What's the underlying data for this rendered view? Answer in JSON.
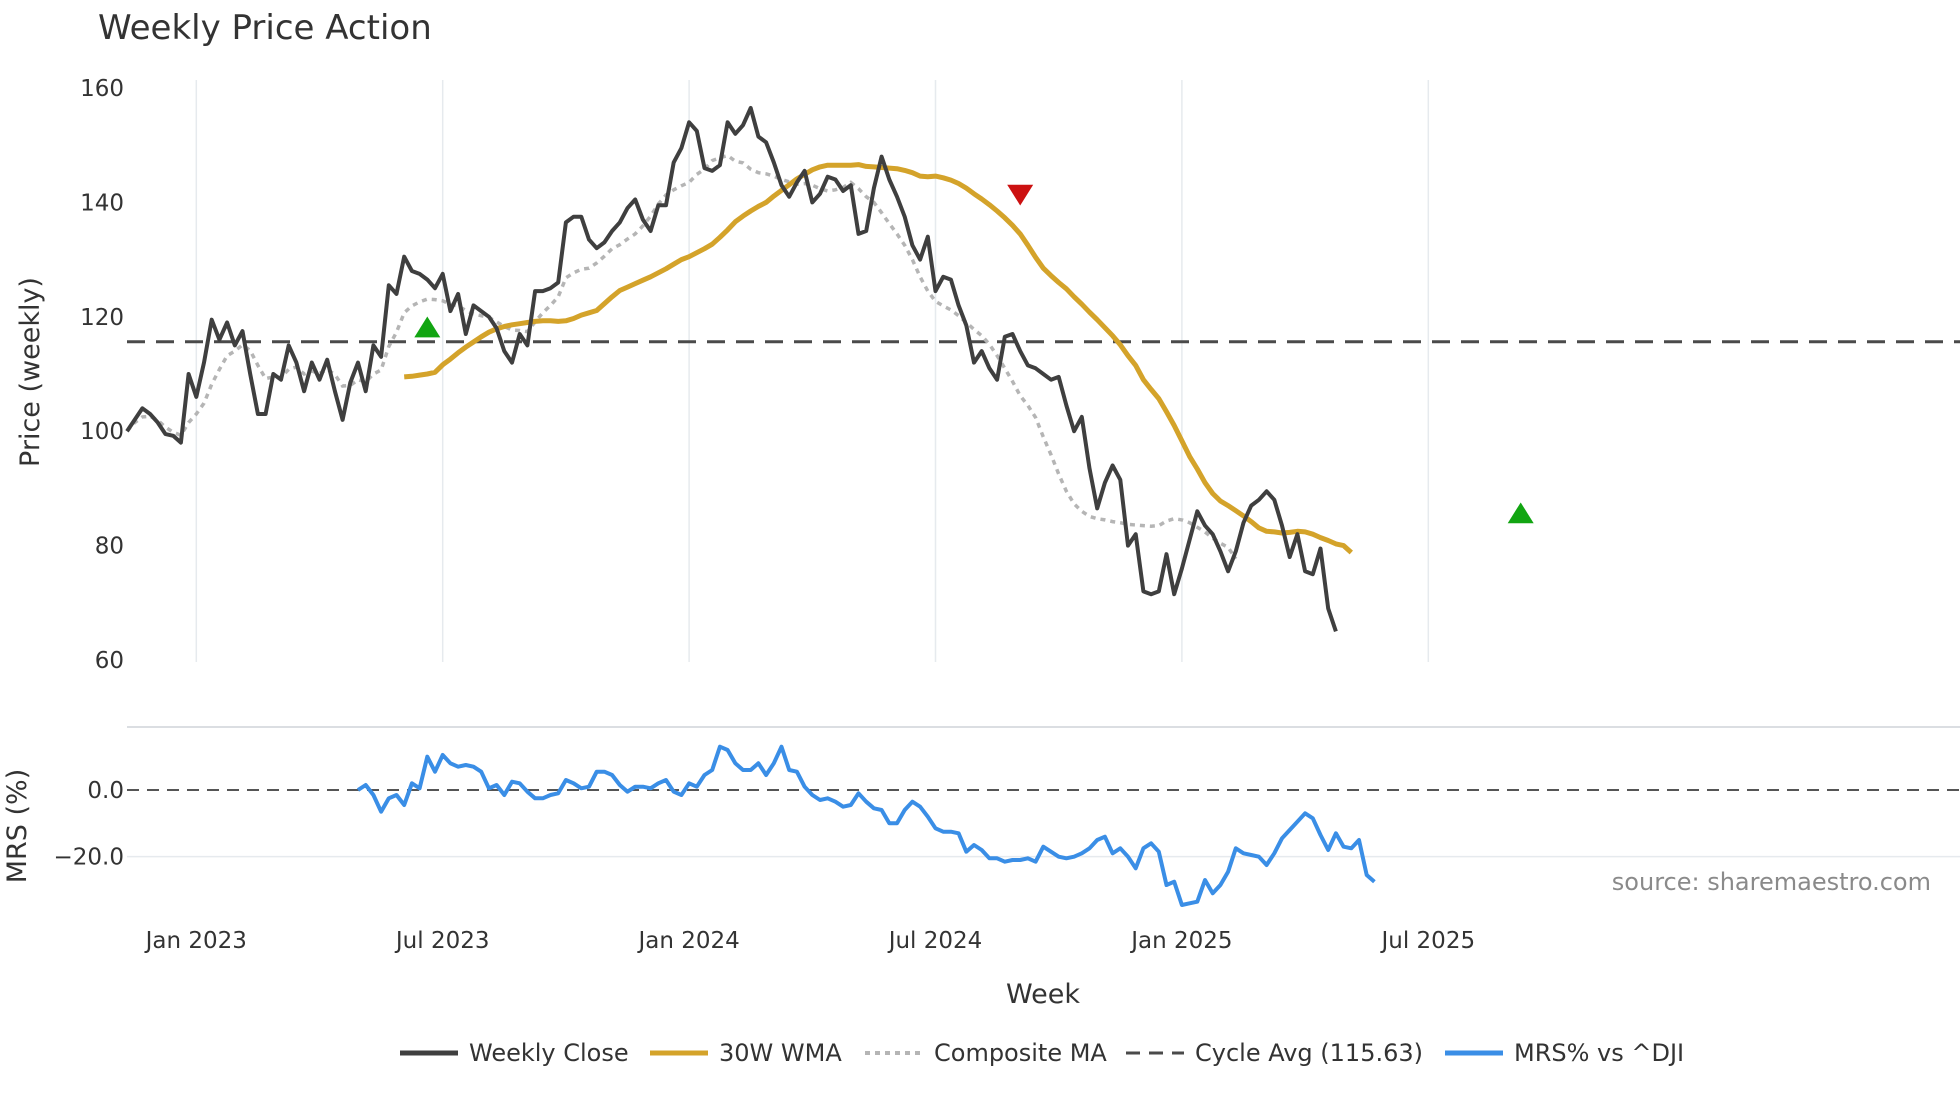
{
  "chart_data": {
    "type": "line",
    "title": "Weekly Price Action",
    "xlabel": "Week",
    "colors": {
      "close": "#3f3f3f",
      "wma": "#d4a32a",
      "composite": "#b5b5b5",
      "cycle": "#4a4a4a",
      "mrs": "#3a8ee6",
      "buy": "#12a512",
      "sell": "#cc1111",
      "grid": "#e6eaee"
    },
    "x_ticks": [
      "Jan 2023",
      "Jul 2023",
      "Jan 2024",
      "Jul 2024",
      "Jan 2025",
      "Jul 2025"
    ],
    "x_tick_weeks": [
      9,
      41,
      73,
      105,
      137,
      169
    ],
    "price_panel": {
      "ylabel": "Price (weekly)",
      "ylim": [
        60,
        160
      ],
      "y_ticks": [
        "60",
        "80",
        "100",
        "120",
        "140",
        "160"
      ],
      "y_tick_values": [
        60,
        80,
        100,
        120,
        140,
        160
      ],
      "series": [
        {
          "name": "Weekly Close",
          "start_week": 0,
          "values": [
            100,
            102,
            104,
            103,
            101.5,
            99.5,
            99.2,
            98,
            110,
            106,
            112,
            119.5,
            116,
            119,
            115,
            117.5,
            110,
            103,
            103,
            110,
            109,
            115,
            112,
            107,
            112,
            109,
            112.5,
            107,
            102,
            108.5,
            112,
            107,
            115,
            113,
            125.5,
            124,
            130.5,
            128,
            127.5,
            126.5,
            125,
            127.5,
            121,
            124,
            117,
            122,
            121,
            120,
            118,
            114,
            112,
            117,
            115,
            124.5,
            124.5,
            125,
            126,
            136.5,
            137.5,
            137.5,
            133.5,
            132,
            133,
            135,
            136.5,
            139,
            140.5,
            137,
            135,
            139.5,
            139.5,
            147,
            149.5,
            154,
            152.5,
            146,
            145.5,
            146.5,
            154,
            152,
            153.5,
            156.5,
            151.5,
            150.5,
            147,
            143,
            141,
            143.5,
            145.5,
            140,
            141.5,
            144.5,
            144,
            142,
            143,
            134.5,
            135,
            142.5,
            148,
            144,
            141,
            137.5,
            132.5,
            130,
            134,
            124.5,
            127,
            126.5,
            122,
            118.5,
            112,
            114,
            111,
            109,
            116.5,
            117,
            114,
            111.5,
            111,
            110,
            109,
            109.5,
            104.5,
            100,
            102.5,
            93.5,
            86.5,
            91,
            94,
            91.5,
            80,
            82,
            72,
            71.5,
            72,
            78.5,
            71.5,
            76,
            81,
            86,
            83.5,
            82,
            79,
            75.5,
            79,
            84,
            87,
            88,
            89.5,
            88,
            83.5,
            78,
            82,
            75.5,
            75,
            79.5,
            69,
            65
          ]
        },
        {
          "name": "30W WMA",
          "start_week": 36,
          "values": [
            109.5,
            109.6,
            109.8,
            110.0,
            110.3,
            111.6,
            112.6,
            113.7,
            114.7,
            115.6,
            116.5,
            117.3,
            117.9,
            118.3,
            118.6,
            118.8,
            119.0,
            119.2,
            119.3,
            119.3,
            119.2,
            119.3,
            119.7,
            120.3,
            120.7,
            121.1,
            122.3,
            123.5,
            124.6,
            125.2,
            125.8,
            126.4,
            127.0,
            127.7,
            128.4,
            129.2,
            130.0,
            130.5,
            131.2,
            131.9,
            132.7,
            133.9,
            135.2,
            136.6,
            137.6,
            138.5,
            139.3,
            140.0,
            141.1,
            142.1,
            143.1,
            144.1,
            144.9,
            145.7,
            146.2,
            146.5,
            146.5,
            146.5,
            146.5,
            146.6,
            146.3,
            146.2,
            146.1,
            146.0,
            145.9,
            145.6,
            145.2,
            144.6,
            144.5,
            144.6,
            144.3,
            143.9,
            143.3,
            142.5,
            141.5,
            140.6,
            139.6,
            138.5,
            137.3,
            136.0,
            134.5,
            132.5,
            130.4,
            128.5,
            127.2,
            126.0,
            124.9,
            123.5,
            122.2,
            120.8,
            119.5,
            118.1,
            116.7,
            115.1,
            113.2,
            111.5,
            109.0,
            107.3,
            105.7,
            103.4,
            101.0,
            98.3,
            95.6,
            93.4,
            91.0,
            89.1,
            87.8,
            87.0,
            86.1,
            85.2,
            84.2,
            83.1,
            82.5,
            82.4,
            82.2,
            82.3,
            82.5,
            82.4,
            82.0,
            81.4,
            80.9,
            80.3,
            80.0,
            78.8
          ]
        },
        {
          "name": "Composite MA",
          "start_week": 0,
          "values": [
            100,
            101.5,
            102.5,
            102.6,
            101.9,
            100.7,
            99.8,
            99.3,
            101.5,
            103.0,
            104.9,
            108.2,
            110.8,
            113.2,
            114.0,
            115.1,
            114.1,
            111.5,
            109.2,
            109.5,
            109.4,
            110.8,
            111.2,
            110.0,
            110.5,
            110.1,
            110.8,
            109.9,
            107.9,
            108.0,
            109.0,
            108.6,
            110.0,
            110.7,
            114.8,
            117.3,
            120.7,
            121.9,
            122.6,
            123.1,
            123.0,
            122.8,
            122.2,
            121.9,
            121.1,
            120.5,
            120.2,
            119.9,
            119.1,
            118.3,
            117.7,
            117.6,
            117.4,
            119.1,
            120.7,
            122.0,
            123.5,
            126.8,
            127.7,
            128.3,
            128.5,
            129.4,
            130.6,
            131.9,
            132.6,
            133.6,
            134.5,
            135.9,
            137.6,
            139.7,
            141.3,
            142.2,
            142.9,
            143.5,
            144.9,
            145.8,
            147.3,
            147.8,
            148.2,
            147.2,
            146.9,
            145.8,
            145.2,
            145.0,
            144.6,
            144.0,
            143.6,
            143.2,
            143.3,
            143.0,
            142.4,
            142.0,
            142.2,
            142.6,
            143.5,
            142.4,
            141.0,
            140.0,
            138.2,
            136.3,
            134.5,
            132.5,
            130.0,
            127.0,
            124.5,
            122.7,
            121.9,
            121.2,
            120.2,
            119.0,
            117.8,
            116.7,
            115.2,
            113.2,
            111.0,
            108.7,
            106.2,
            104.5,
            102.4,
            99.0,
            95.9,
            92.5,
            89.5,
            87.3,
            86.0,
            85.1,
            84.7,
            84.5,
            84.2,
            84.0,
            83.7,
            83.6,
            83.5,
            83.4,
            83.5,
            84.3,
            84.7,
            84.5,
            84.0,
            83.2,
            82.4,
            81.3,
            80.4,
            79.7,
            77.7
          ]
        },
        {
          "name": "Cycle Avg (115.63)",
          "value": 115.63
        }
      ],
      "markers": [
        {
          "type": "buy",
          "week": 39,
          "value": 118
        },
        {
          "type": "sell",
          "week": 116,
          "value": 141.5
        },
        {
          "type": "buy",
          "week": 181,
          "value": 85.5
        }
      ]
    },
    "mrs_panel": {
      "ylabel": "MRS (%)",
      "ylim": [
        -36,
        15
      ],
      "y_ticks": [
        "0.0",
        "−20.0"
      ],
      "y_tick_values": [
        0,
        -20
      ],
      "series": [
        {
          "name": "MRS% vs ^DJI",
          "start_week": 30,
          "values": [
            0,
            1.5,
            -1.5,
            -6.5,
            -2.5,
            -1.5,
            -4.5,
            2,
            0.5,
            10,
            5.5,
            10.5,
            8,
            7,
            7.5,
            7,
            5.5,
            0.5,
            1.5,
            -1.5,
            2.5,
            2,
            -0.5,
            -2.5,
            -2.5,
            -1.5,
            -1,
            3,
            2,
            0.5,
            1,
            5.5,
            5.5,
            4.5,
            1.5,
            -0.5,
            1,
            1,
            0.5,
            2,
            3,
            -0.5,
            -1.5,
            2,
            1,
            4.5,
            6,
            13,
            12,
            8,
            6,
            6,
            8,
            4.5,
            8,
            13,
            6,
            5.5,
            1,
            -1.5,
            -3,
            -2.5,
            -3.5,
            -5,
            -4.5,
            -1,
            -3.5,
            -5.5,
            -6,
            -10,
            -10,
            -6,
            -3.5,
            -5,
            -8,
            -11.5,
            -12.5,
            -12.5,
            -13,
            -18.5,
            -16.5,
            -18,
            -20.5,
            -20.5,
            -21.5,
            -21,
            -21,
            -20.5,
            -21.5,
            -17,
            -18.5,
            -20,
            -20.5,
            -20,
            -19,
            -17.5,
            -15,
            -14,
            -19,
            -17.5,
            -20,
            -23.5,
            -17.5,
            -16,
            -18.5,
            -28.5,
            -27.5,
            -34.5,
            -34,
            -33.5,
            -27,
            -31,
            -28.5,
            -24.5,
            -17.5,
            -19,
            -19.5,
            -20,
            -22.5,
            -19,
            -14.5,
            -12,
            -9.5,
            -7,
            -8.5,
            -13.5,
            -18,
            -13,
            -17,
            -17.5,
            -15,
            -25.5,
            -27.5
          ]
        }
      ]
    },
    "legend": [
      "Weekly Close",
      "30W WMA",
      "Composite MA",
      "Cycle Avg (115.63)",
      "MRS% vs ^DJI"
    ],
    "legend_position": "bottom-center",
    "source": "source: sharemaestro.com",
    "grid": true
  }
}
